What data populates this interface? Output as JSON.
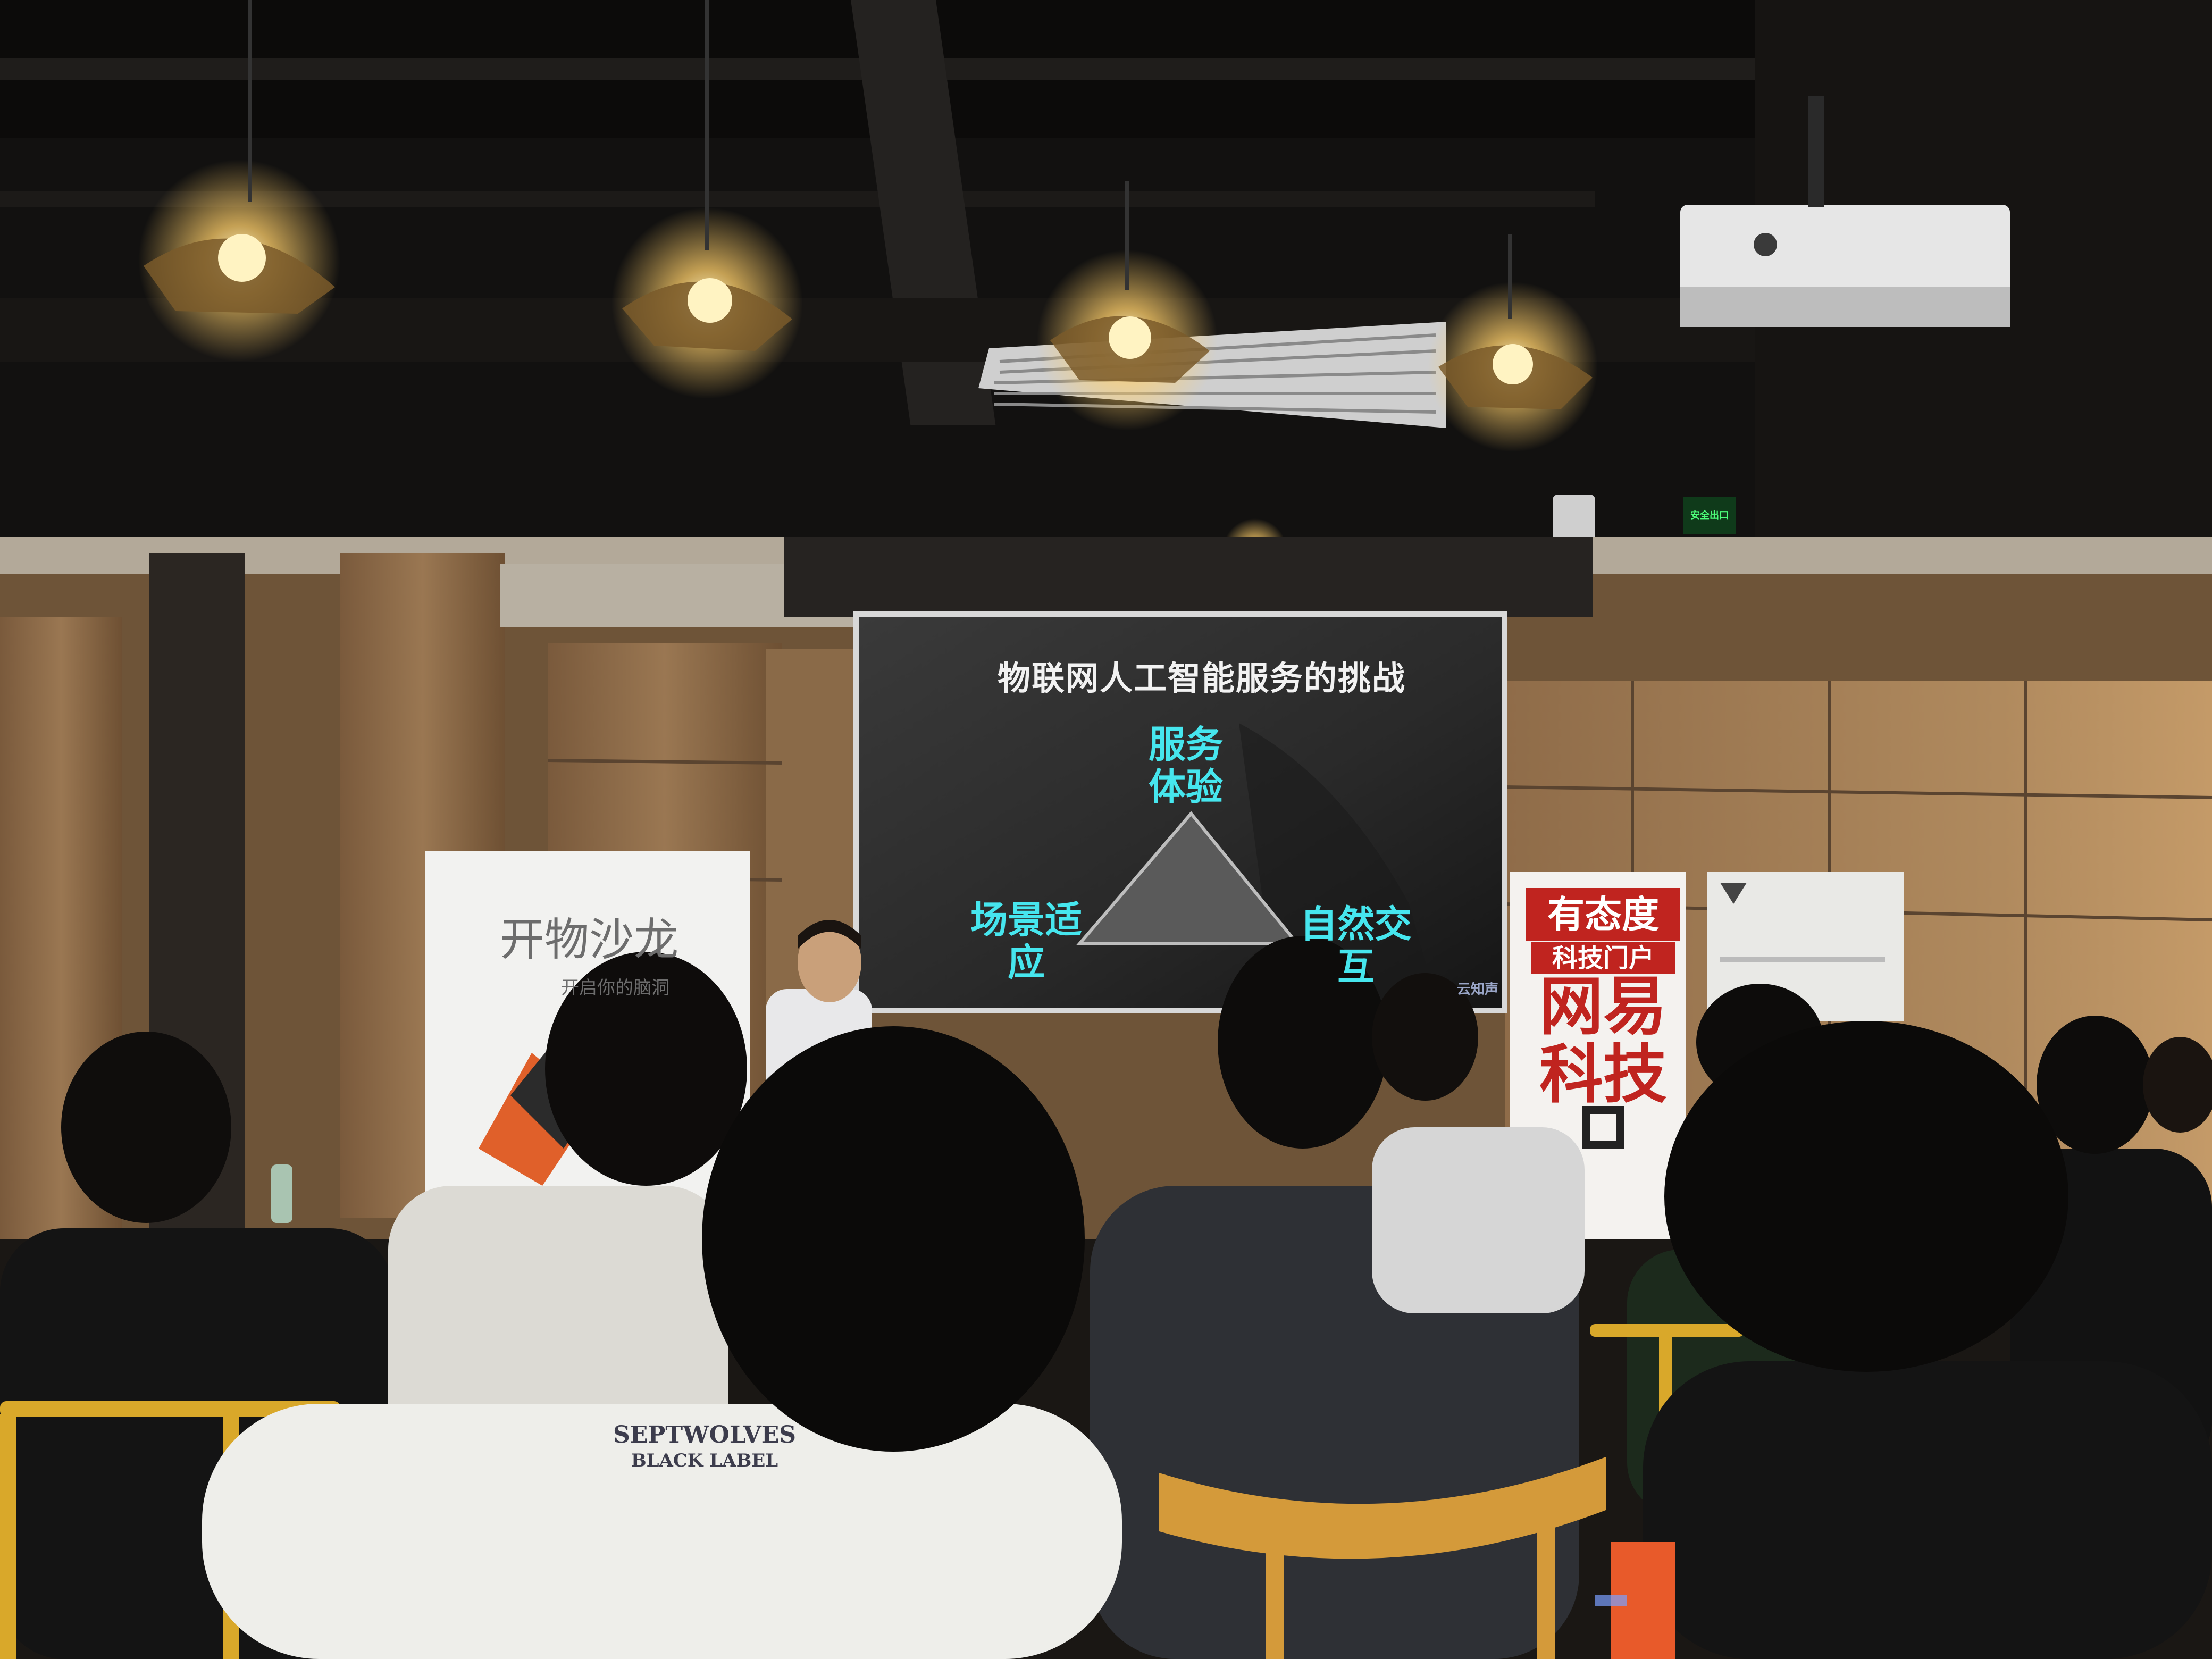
{
  "slide": {
    "title": "物联网人工智能服务的挑战",
    "top_label": "服务体验",
    "left_label": "场景适应",
    "right_label": "自然交互",
    "watermark": "云知声"
  },
  "banners": {
    "left_title": "开物沙龙",
    "left_subtitle": "开启你的脑洞",
    "red_line1": "有态度",
    "red_line2": "科技门户",
    "red_big": "网易科技"
  },
  "signs": {
    "exit": "安全出口"
  },
  "shirt": {
    "line1": "SEPTWOLVES",
    "line2": "BLACK LABEL"
  },
  "colors": {
    "slide_text": "#46e6ee",
    "brand_red": "#c0241f",
    "wood_wall": "#8a6a48",
    "ceiling": "#111110",
    "lamp_glow": "#ffcf6a"
  }
}
